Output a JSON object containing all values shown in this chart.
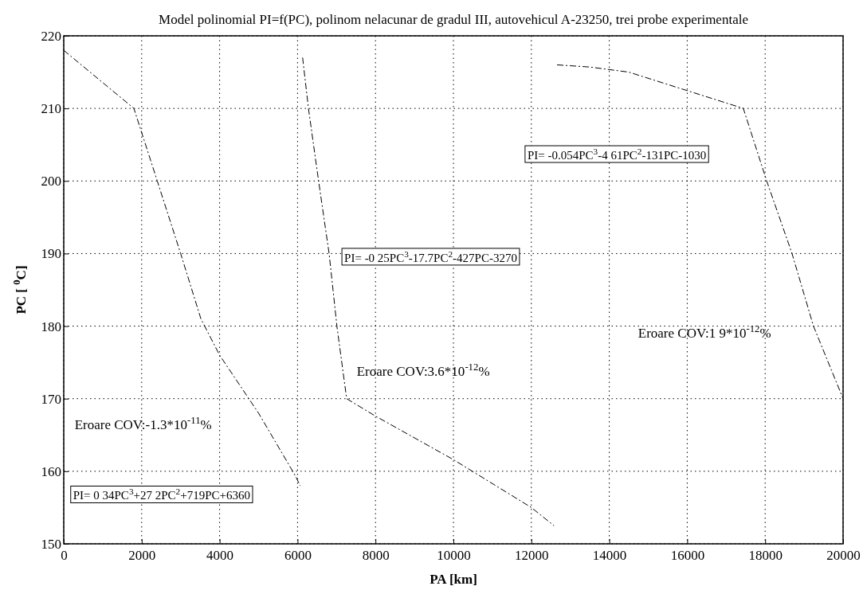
{
  "chart_data": {
    "type": "line",
    "title": "Model polinomial PI=f(PC), polinom nelacunar de gradul III, autovehicul A-23250, trei probe experimentale",
    "xlabel": "PA [km]",
    "ylabel": "PC [ $^{0}$C]",
    "xlim": [
      0,
      20000
    ],
    "xticks": [
      0,
      2000,
      4000,
      6000,
      8000,
      10000,
      12000,
      14000,
      16000,
      18000,
      20000
    ],
    "ylim": [
      150,
      220
    ],
    "yticks": [
      150,
      160,
      170,
      180,
      190,
      200,
      210,
      220
    ],
    "grid": true,
    "line_style": "dashed",
    "series": [
      {
        "color": "#000000",
        "x": [
          0,
          1800,
          2400,
          3000,
          3520,
          4000,
          5000,
          5930,
          6070
        ],
        "values": [
          218,
          210,
          200,
          190,
          181,
          176,
          168,
          159.5,
          158
        ]
      },
      {
        "color": "#000000",
        "x": [
          6130,
          6280,
          6540,
          6810,
          7010,
          7260,
          8000,
          10000,
          12000,
          12580
        ],
        "values": [
          217,
          210,
          200,
          190,
          180,
          170,
          167.6,
          161.6,
          155,
          152.5
        ]
      },
      {
        "color": "#000000",
        "x": [
          12660,
          13500,
          14500,
          17440,
          18040,
          18690,
          19240,
          20000
        ],
        "values": [
          216,
          215.7,
          215,
          210,
          200,
          190,
          180,
          170
        ]
      }
    ],
    "annotations": [
      "PI= 0 34PC$^{3}$+27 2PC$^{2}$+719PC+6360",
      "Eroare COV:-1.3*10$^{-11}$%",
      "PI= -0 25PC$^{3}$-17.7PC$^{2}$-427PC-3270",
      "Eroare COV:3.6*10$^{-12}$%",
      "PI= -0.054PC$^{3}$-4 61PC$^{2}$-131PC-1030",
      "Eroare COV:1 9*10$^{-12}$%"
    ]
  }
}
